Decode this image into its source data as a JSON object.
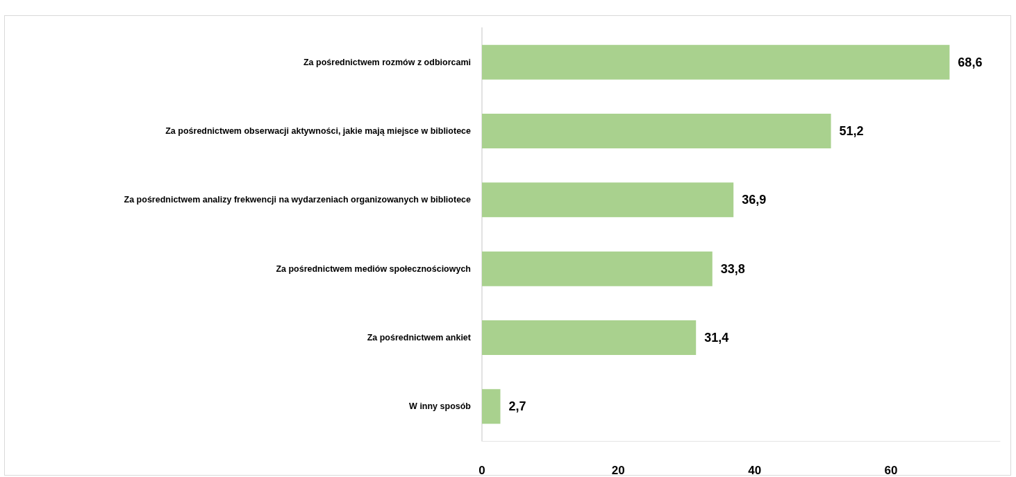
{
  "chart_data": {
    "type": "bar",
    "orientation": "horizontal",
    "categories": [
      "Za pośrednictwem rozmów z odbiorcami",
      "Za pośrednictwem obserwacji aktywności, jakie mają miejsce w bibliotece",
      "Za pośrednictwem analizy frekwencji na wydarzeniach organizowanych w bibliotece",
      "Za pośrednictwem mediów społecznościowych",
      "Za pośrednictwem ankiet",
      "W inny sposób"
    ],
    "values": [
      68.6,
      51.2,
      36.9,
      33.8,
      31.4,
      2.7
    ],
    "value_labels": [
      "68,6",
      "51,2",
      "36,9",
      "33,8",
      "31,4",
      "2,7"
    ],
    "color": "#a9d18e",
    "xlim": [
      0,
      76
    ],
    "xticks": [
      0,
      20,
      40,
      60
    ],
    "grid": false
  }
}
